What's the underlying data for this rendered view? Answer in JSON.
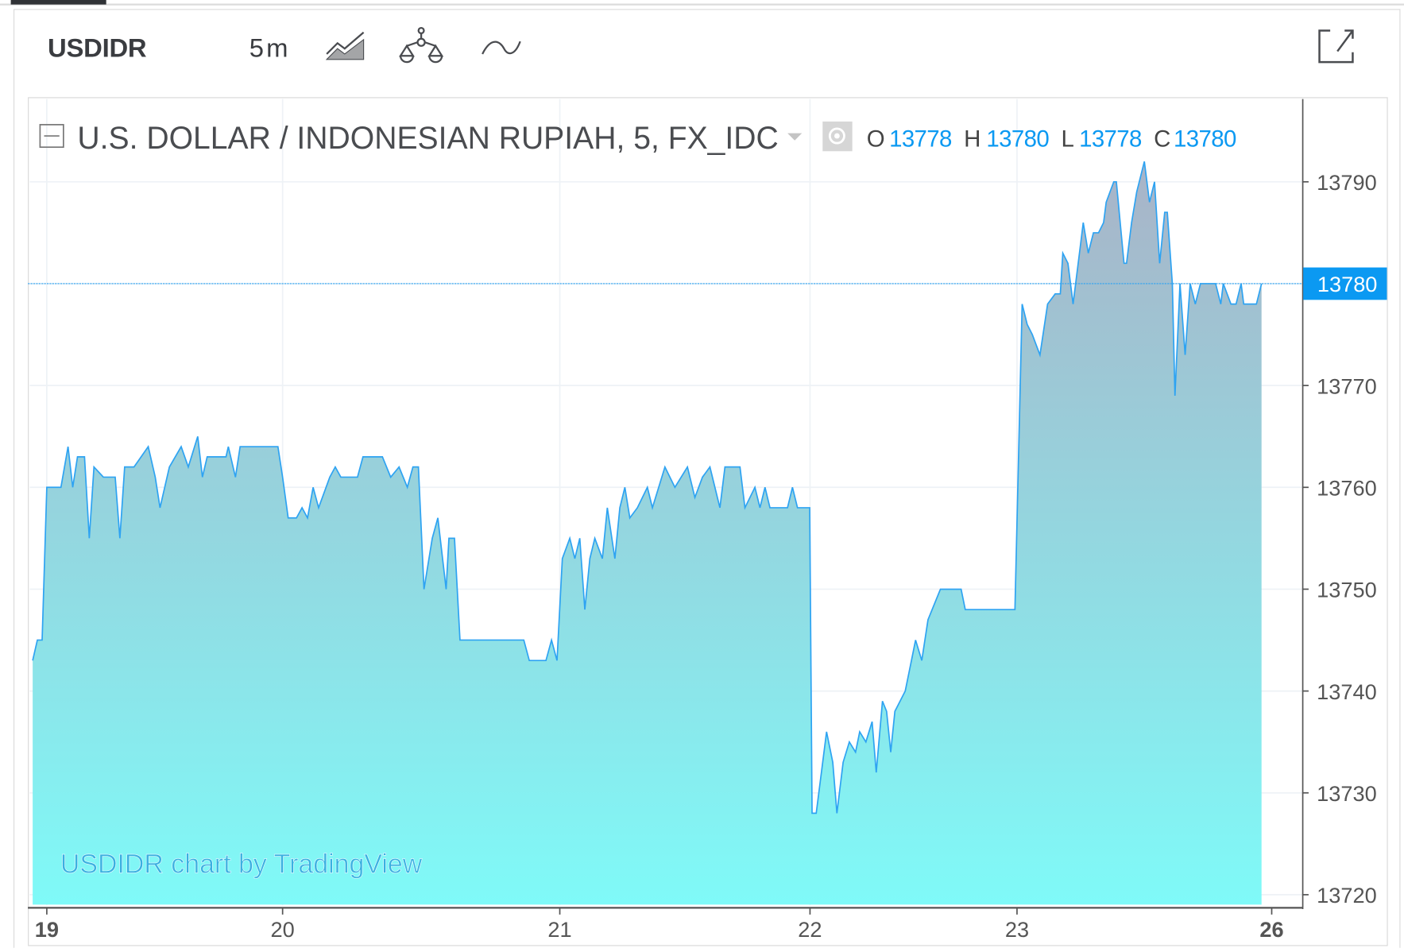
{
  "header": {
    "symbol": "USDIDR",
    "interval": "5m",
    "icons": [
      "area-chart-style-icon",
      "compare-scales-icon",
      "indicators-wave-icon",
      "popout-icon"
    ]
  },
  "legend": {
    "title": "U.S. DOLLAR / INDONESIAN RUPIAH, 5, FX_IDC",
    "o_label": "O",
    "o_value": "13778",
    "h_label": "H",
    "h_value": "13780",
    "l_label": "L",
    "l_value": "13778",
    "c_label": "C",
    "c_value": "13780"
  },
  "watermark": "USDIDR chart by TradingView",
  "colors": {
    "line": "#2ea3f2",
    "fill_top": "#a9b3c7",
    "fill_bottom": "#7ffaf8",
    "accent": "#0b99f2",
    "last_price_badge": "#0b99f2"
  },
  "chart_data": {
    "type": "area",
    "title": "U.S. DOLLAR / INDONESIAN RUPIAH, 5, FX_IDC",
    "xlabel": "",
    "ylabel": "",
    "x_ticks": [
      19,
      20,
      21,
      22,
      23,
      26
    ],
    "x_tick_labels": [
      "19",
      "20",
      "21",
      "22",
      "23",
      "26"
    ],
    "y_ticks": [
      13720,
      13730,
      13740,
      13750,
      13760,
      13770,
      13780,
      13790
    ],
    "y_tick_labels": [
      "13720",
      "13730",
      "13740",
      "13750",
      "13760",
      "13770",
      "13780",
      "13790"
    ],
    "ylim": [
      13719.5,
      13798
    ],
    "grid": true,
    "last_price": 13780,
    "last_price_label": "13780",
    "weekend_gap_skipped": true,
    "series": [
      {
        "x": [
          18.94,
          18.96,
          18.98,
          19.0,
          19.06,
          19.09,
          19.11,
          19.13,
          19.16,
          19.18,
          19.2,
          19.24,
          19.29,
          19.31,
          19.33,
          19.37,
          19.4,
          19.43,
          19.46,
          19.48,
          19.52,
          19.57,
          19.6,
          19.64,
          19.66,
          19.68,
          19.76,
          19.77,
          19.8,
          19.82,
          19.98,
          20.0,
          20.02,
          20.05,
          20.07,
          20.09,
          20.11,
          20.13,
          20.17,
          20.19,
          20.21,
          20.23,
          20.27,
          20.29,
          20.33,
          20.36,
          20.39,
          20.42,
          20.45,
          20.47,
          20.49,
          20.51,
          20.54,
          20.56,
          20.59,
          20.6,
          20.62,
          20.64,
          20.87,
          20.89,
          20.95,
          20.97,
          20.99,
          21.01,
          21.04,
          21.06,
          21.08,
          21.1,
          21.12,
          21.14,
          21.17,
          21.19,
          21.22,
          21.24,
          21.26,
          21.28,
          21.31,
          21.35,
          21.37,
          21.42,
          21.46,
          21.51,
          21.54,
          21.57,
          21.6,
          21.64,
          21.66,
          21.72,
          21.74,
          21.78,
          21.8,
          21.82,
          21.84,
          21.91,
          21.93,
          21.95,
          21.999,
          22.01,
          22.03,
          22.08,
          22.11,
          22.13,
          22.16,
          22.19,
          22.22,
          22.24,
          22.27,
          22.3,
          22.32,
          22.35,
          22.37,
          22.39,
          22.41,
          22.46,
          22.49,
          22.51,
          22.54,
          22.57,
          22.59,
          22.63,
          22.73,
          22.75,
          22.99,
          23.02,
          23.04,
          23.06,
          23.09,
          23.12,
          23.15,
          23.17,
          23.18,
          23.2,
          23.22,
          23.25,
          23.26,
          23.28,
          23.3,
          23.32,
          23.34,
          23.35,
          23.38,
          23.39,
          23.42,
          23.43,
          23.45,
          23.47,
          23.5,
          23.52,
          23.54,
          23.56,
          23.58,
          23.59,
          23.61,
          23.62,
          23.64,
          23.66,
          23.68,
          23.7,
          23.72,
          23.78,
          23.8,
          23.81,
          23.84,
          23.86,
          23.88,
          23.89,
          23.94,
          23.96
        ],
        "y": [
          13743,
          13745,
          13745,
          13760,
          13760,
          13764,
          13760,
          13763,
          13763,
          13755,
          13762,
          13761,
          13761,
          13755,
          13762,
          13762,
          13763,
          13764,
          13761,
          13758,
          13762,
          13764,
          13762,
          13765,
          13761,
          13763,
          13763,
          13764,
          13761,
          13764,
          13764,
          13761,
          13757,
          13757,
          13758,
          13757,
          13760,
          13758,
          13761,
          13762,
          13761,
          13761,
          13761,
          13763,
          13763,
          13763,
          13761,
          13762,
          13760,
          13762,
          13762,
          13750,
          13755,
          13757,
          13750,
          13755,
          13755,
          13745,
          13745,
          13743,
          13743,
          13745,
          13743,
          13753,
          13755,
          13753,
          13755,
          13748,
          13753,
          13755,
          13753,
          13758,
          13753,
          13758,
          13760,
          13757,
          13758,
          13760,
          13758,
          13762,
          13760,
          13762,
          13759,
          13761,
          13762,
          13758,
          13762,
          13762,
          13758,
          13760,
          13758,
          13760,
          13758,
          13758,
          13760,
          13758,
          13758,
          13728,
          13728,
          13736,
          13733,
          13728,
          13733,
          13735,
          13734,
          13736,
          13735,
          13737,
          13732,
          13739,
          13738,
          13734,
          13738,
          13740,
          13743,
          13745,
          13743,
          13747,
          13748,
          13750,
          13750,
          13748,
          13748,
          13778,
          13776,
          13775,
          13773,
          13778,
          13779,
          13779,
          13783,
          13782,
          13778,
          13784,
          13786,
          13783,
          13785,
          13785,
          13786,
          13788,
          13790,
          13790,
          13782,
          13782,
          13786,
          13789,
          13792,
          13788,
          13790,
          13782,
          13787,
          13787,
          13780,
          13769,
          13780,
          13773,
          13780,
          13778,
          13780,
          13780,
          13778,
          13780,
          13778,
          13778,
          13780,
          13778,
          13778,
          13780
        ]
      }
    ]
  }
}
